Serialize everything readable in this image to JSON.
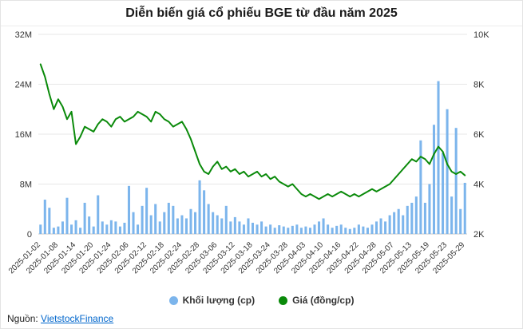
{
  "title": "Diễn biến giá cổ phiếu BGE từ đầu năm 2025",
  "legend": {
    "volume_label": "Khối lượng (cp)",
    "price_label": "Giá (đồng/cp)"
  },
  "footer": {
    "source_label": "Nguồn:",
    "source_link": "VietstockFinance"
  },
  "colors": {
    "volume": "#7cb5ec",
    "price": "#0a8a0a",
    "grid": "#e7e7e7",
    "axis_line": "#c9c9c9",
    "axis_text": "#333333",
    "link": "#0066cc"
  },
  "chart_data": {
    "type": "combo",
    "title": "Diễn biến giá cổ phiếu BGE từ đầu năm 2025",
    "grid": true,
    "legend_position": "bottom",
    "x_tick_every": 4,
    "x": [
      "2025-01-02",
      "2025-01-03",
      "2025-01-06",
      "2025-01-07",
      "2025-01-08",
      "2025-01-09",
      "2025-01-10",
      "2025-01-13",
      "2025-01-14",
      "2025-01-15",
      "2025-01-16",
      "2025-01-17",
      "2025-01-20",
      "2025-01-21",
      "2025-01-22",
      "2025-01-23",
      "2025-01-24",
      "2025-02-03",
      "2025-02-04",
      "2025-02-05",
      "2025-02-06",
      "2025-02-07",
      "2025-02-10",
      "2025-02-11",
      "2025-02-12",
      "2025-02-13",
      "2025-02-14",
      "2025-02-17",
      "2025-02-18",
      "2025-02-19",
      "2025-02-20",
      "2025-02-21",
      "2025-02-24",
      "2025-02-25",
      "2025-02-26",
      "2025-02-27",
      "2025-02-28",
      "2025-03-03",
      "2025-03-04",
      "2025-03-05",
      "2025-03-06",
      "2025-03-07",
      "2025-03-10",
      "2025-03-11",
      "2025-03-12",
      "2025-03-13",
      "2025-03-14",
      "2025-03-17",
      "2025-03-18",
      "2025-03-19",
      "2025-03-20",
      "2025-03-21",
      "2025-03-24",
      "2025-03-25",
      "2025-03-26",
      "2025-03-27",
      "2025-03-28",
      "2025-03-31",
      "2025-04-01",
      "2025-04-02",
      "2025-04-03",
      "2025-04-04",
      "2025-04-08",
      "2025-04-09",
      "2025-04-10",
      "2025-04-11",
      "2025-04-14",
      "2025-04-15",
      "2025-04-16",
      "2025-04-17",
      "2025-04-18",
      "2025-04-21",
      "2025-04-22",
      "2025-04-23",
      "2025-04-24",
      "2025-04-25",
      "2025-04-28",
      "2025-04-29",
      "2025-05-05",
      "2025-05-06",
      "2025-05-07",
      "2025-05-08",
      "2025-05-09",
      "2025-05-12",
      "2025-05-13",
      "2025-05-14",
      "2025-05-15",
      "2025-05-16",
      "2025-05-19",
      "2025-05-20",
      "2025-05-21",
      "2025-05-22",
      "2025-05-23",
      "2025-05-26",
      "2025-05-27",
      "2025-05-28",
      "2025-05-29"
    ],
    "left_axis": {
      "ticks": [
        "0",
        "8M",
        "16M",
        "24M",
        "32M"
      ],
      "min": 0,
      "max": 32,
      "unit": "million shares"
    },
    "right_axis": {
      "ticks": [
        "2K",
        "4K",
        "6K",
        "8K",
        "10K"
      ],
      "min": 2000,
      "max": 10000,
      "unit": "dong/share"
    },
    "series": [
      {
        "name": "Khối lượng (cp)",
        "type": "bar",
        "axis": "left",
        "color": "#7cb5ec",
        "unit": "million shares",
        "values": [
          1.5,
          5.5,
          4.2,
          1.0,
          1.2,
          2.0,
          5.8,
          1.5,
          2.2,
          1.0,
          5.0,
          2.8,
          1.2,
          6.2,
          2.0,
          1.5,
          2.2,
          2.0,
          1.2,
          1.8,
          7.7,
          3.5,
          1.5,
          4.5,
          7.4,
          3.0,
          4.8,
          2.0,
          3.5,
          5.0,
          4.5,
          2.5,
          3.0,
          2.5,
          4.0,
          3.5,
          8.6,
          7.0,
          4.8,
          3.5,
          3.0,
          2.5,
          4.5,
          2.0,
          2.7,
          2.0,
          1.5,
          2.5,
          1.8,
          1.5,
          2.0,
          1.2,
          1.5,
          1.0,
          1.4,
          1.2,
          1.0,
          1.3,
          1.5,
          1.0,
          1.2,
          1.0,
          1.5,
          2.0,
          2.5,
          1.5,
          1.0,
          1.3,
          1.5,
          1.0,
          0.8,
          1.0,
          1.5,
          1.2,
          1.0,
          1.5,
          2.0,
          2.5,
          2.0,
          3.0,
          3.5,
          4.0,
          3.0,
          4.5,
          5.0,
          6.0,
          15.0,
          5.0,
          8.0,
          17.5,
          24.5,
          13.0,
          20.0,
          6.0,
          17.0,
          4.0,
          8.2
        ]
      },
      {
        "name": "Giá (đồng/cp)",
        "type": "line",
        "axis": "right",
        "color": "#0a8a0a",
        "unit": "dong/share",
        "values": [
          8800,
          8300,
          7600,
          7000,
          7400,
          7100,
          6600,
          6900,
          5600,
          5900,
          6300,
          6200,
          6100,
          6400,
          6600,
          6500,
          6300,
          6600,
          6700,
          6500,
          6600,
          6700,
          6900,
          6800,
          6700,
          6500,
          6900,
          6800,
          6600,
          6500,
          6300,
          6400,
          6500,
          6200,
          5800,
          5300,
          4800,
          4500,
          4400,
          4700,
          4900,
          4600,
          4700,
          4500,
          4600,
          4400,
          4500,
          4300,
          4400,
          4500,
          4300,
          4400,
          4200,
          4300,
          4100,
          4000,
          3900,
          4000,
          3800,
          3600,
          3500,
          3600,
          3500,
          3400,
          3500,
          3600,
          3500,
          3600,
          3700,
          3600,
          3500,
          3600,
          3500,
          3600,
          3700,
          3800,
          3700,
          3800,
          3900,
          4000,
          4200,
          4400,
          4600,
          4800,
          5000,
          4900,
          5100,
          5000,
          4800,
          5200,
          5500,
          5300,
          4800,
          4500,
          4400,
          4500,
          4350
        ]
      }
    ]
  }
}
